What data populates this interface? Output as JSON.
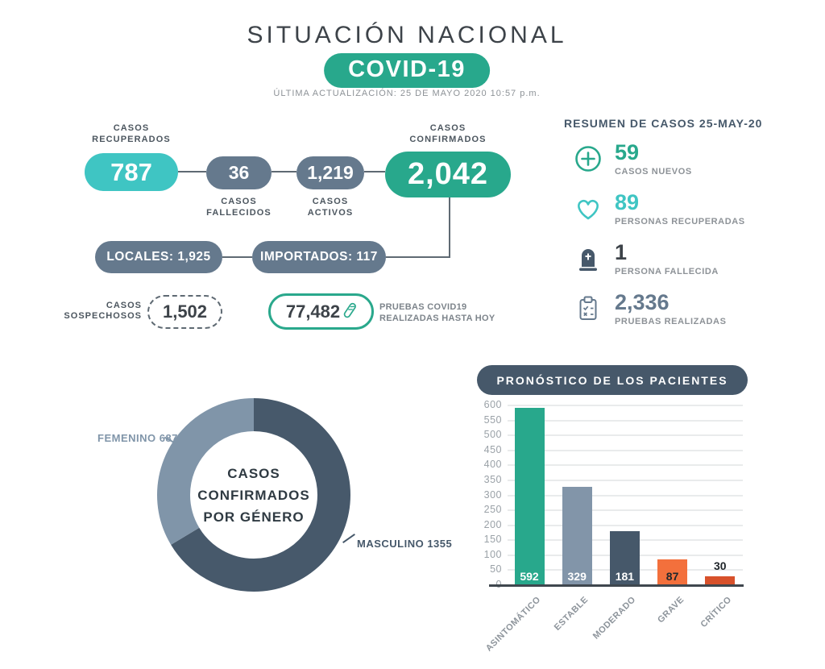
{
  "colors": {
    "teal": "#3fc5c3",
    "green": "#28a88c",
    "slate": "#65798d",
    "dark_slate": "#46586a",
    "light_slate": "#8295a9",
    "orange": "#f3703c",
    "dark_orange": "#d8512b",
    "title_text": "#3d4349",
    "muted_text": "#8d9297",
    "connector": "#5f6a73"
  },
  "header": {
    "title": "SITUACIÓN NACIONAL",
    "badge": "COVID-19",
    "updated": "ÚLTIMA ACTUALIZACIÓN: 25 DE MAYO 2020 10:57 p.m."
  },
  "flow": {
    "recuperados": {
      "label": "CASOS\nRECUPERADOS",
      "value": "787"
    },
    "fallecidos": {
      "value": "36",
      "label": "CASOS\nFALLECIDOS"
    },
    "activos": {
      "value": "1,219",
      "label": "CASOS\nACTIVOS"
    },
    "confirmados": {
      "label": "CASOS\nCONFIRMADOS",
      "value": "2,042"
    },
    "locales": "LOCALES: 1,925",
    "importados": "IMPORTADOS: 117",
    "sospechosos": {
      "label": "CASOS\nSOSPECHOSOS",
      "value": "1,502"
    },
    "pruebas": {
      "value": "77,482",
      "label": "PRUEBAS COVID19\nREALIZADAS HASTA HOY"
    }
  },
  "summary": {
    "title": "RESUMEN DE CASOS 25-MAY-20",
    "items": [
      {
        "icon": "plus-circle-icon",
        "value": "59",
        "label": "CASOS NUEVOS"
      },
      {
        "icon": "heart-icon",
        "value": "89",
        "label": "PERSONAS RECUPERADAS"
      },
      {
        "icon": "tombstone-icon",
        "value": "1",
        "label": "PERSONA FALLECIDA"
      },
      {
        "icon": "clipboard-icon",
        "value": "2,336",
        "label": "PRUEBAS REALIZADAS"
      }
    ]
  },
  "chart_data": [
    {
      "type": "pie",
      "subtype": "donut",
      "center_label": "CASOS\nCONFIRMADOS\nPOR GÉNERO",
      "labels": [
        "MASCULINO",
        "FEMENINO"
      ],
      "values": [
        1355,
        687
      ],
      "colors": [
        "#47596b",
        "#8095a9"
      ],
      "annotations": [
        "FEMENINO 687",
        "MASCULINO 1355"
      ],
      "start_angle_deg": 0,
      "direction": "clockwise",
      "legend": false
    },
    {
      "type": "bar",
      "title": "PRONÓSTICO DE LOS PACIENTES",
      "categories": [
        "ASINTOMÁTICO",
        "ESTABLE",
        "MODERADO",
        "GRAVE",
        "CRÍTICO"
      ],
      "values": [
        592,
        329,
        181,
        87,
        30
      ],
      "colors": [
        "#28a88c",
        "#8295a9",
        "#46586a",
        "#f3703c",
        "#d8512b"
      ],
      "value_label_colors": [
        "#ffffff",
        "#ffffff",
        "#ffffff",
        "#20262b",
        "#20262b"
      ],
      "value_label_inside": [
        true,
        true,
        true,
        true,
        false
      ],
      "xlabel": "",
      "ylabel": "",
      "ylim": [
        0,
        600
      ],
      "ytick_step": 50,
      "grid": true,
      "legend": false
    }
  ]
}
